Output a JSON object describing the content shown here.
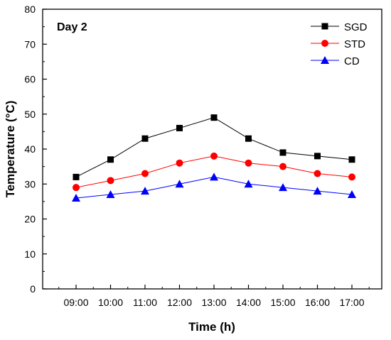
{
  "chart_data": {
    "type": "line",
    "panel_label": "Day 2",
    "xlabel": "Time (h)",
    "ylabel": "Temperature (°C)",
    "x": [
      "09:00",
      "10:00",
      "11:00",
      "12:00",
      "13:00",
      "14:00",
      "15:00",
      "16:00",
      "17:00"
    ],
    "ylim": [
      0,
      80
    ],
    "yticks": [
      0,
      10,
      20,
      30,
      40,
      50,
      60,
      70,
      80
    ],
    "grid": false,
    "legend_position": "top-right",
    "series": [
      {
        "name": "SGD",
        "values": [
          32,
          37,
          43,
          46,
          49,
          43,
          39,
          38,
          37
        ],
        "color": "#000000",
        "marker": "square"
      },
      {
        "name": "STD",
        "values": [
          29,
          31,
          33,
          36,
          38,
          36,
          35,
          33,
          32
        ],
        "color": "#ff0000",
        "marker": "circle"
      },
      {
        "name": "CD",
        "values": [
          26,
          27,
          28,
          30,
          32,
          30,
          29,
          28,
          27
        ],
        "color": "#0000ff",
        "marker": "triangle"
      }
    ]
  }
}
